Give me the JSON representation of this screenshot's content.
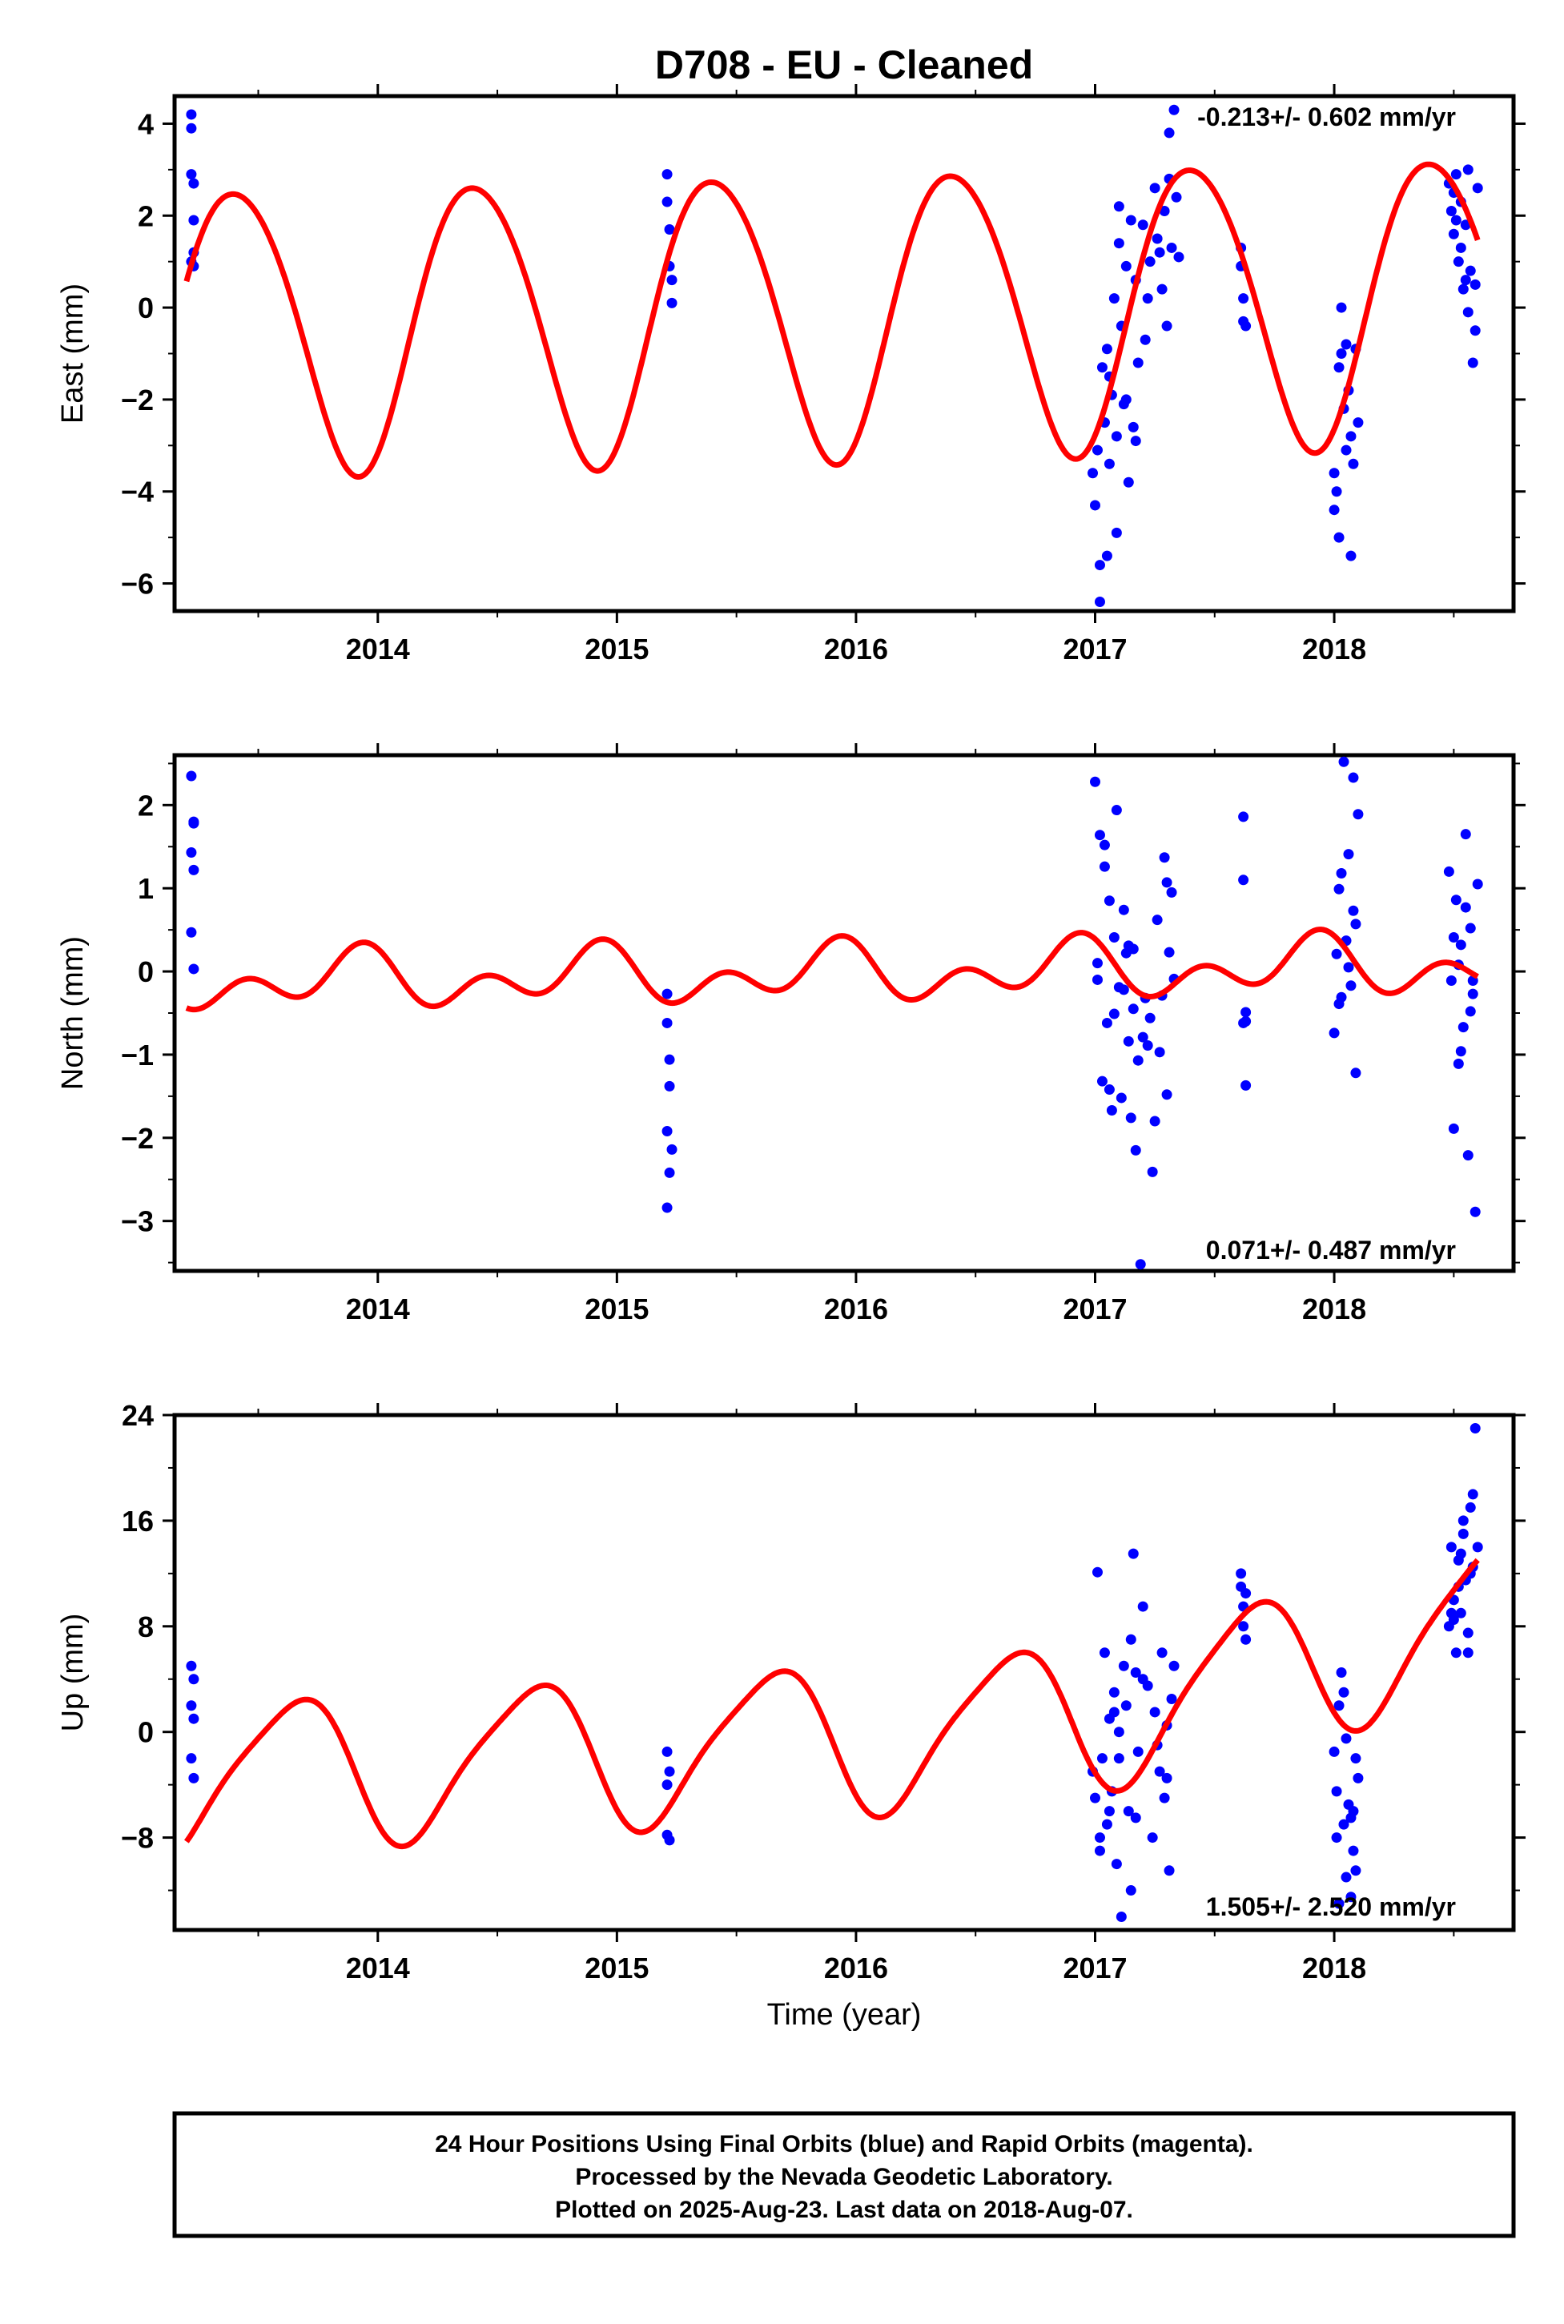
{
  "title": "D708  - EU - Cleaned",
  "colors": {
    "points": "#0000ff",
    "model": "#ff0000",
    "frame": "#000000"
  },
  "xlabel": "Time (year)",
  "footer": [
    "24 Hour Positions Using Final Orbits (blue) and Rapid Orbits (magenta).",
    "Processed by the Nevada Geodetic Laboratory.",
    "Plotted on 2025-Aug-23. Last data on 2018-Aug-07."
  ],
  "chart_data": [
    {
      "type": "scatter",
      "ylabel": "East (mm)",
      "rate_label": "-0.213+/- 0.602 mm/yr",
      "rate_position": "top-right",
      "xlim": [
        2013.15,
        2018.75
      ],
      "ylim": [
        -6.6,
        4.6
      ],
      "xticks": [
        2014,
        2015,
        2016,
        2017,
        2018
      ],
      "xtick_labels": [
        "2014",
        "2015",
        "2016",
        "2017",
        "2018"
      ],
      "yticks": [
        -6,
        -4,
        -2,
        0,
        2,
        4
      ],
      "ytick_labels": [
        "−6",
        "−4",
        "−2",
        "0",
        "2",
        "4"
      ],
      "ytick_minor": 1,
      "points": {
        "x": [
          2013.22,
          2013.22,
          2013.22,
          2013.23,
          2013.23,
          2013.23,
          2013.22,
          2013.23,
          2015.21,
          2015.21,
          2015.22,
          2015.22,
          2015.23,
          2015.23,
          2016.99,
          2017.0,
          2017.01,
          2017.02,
          2017.03,
          2017.04,
          2017.05,
          2017.06,
          2017.07,
          2017.08,
          2017.09,
          2017.1,
          2017.11,
          2017.12,
          2017.13,
          2017.14,
          2017.15,
          2017.16,
          2017.17,
          2017.18,
          2017.2,
          2017.22,
          2017.23,
          2017.25,
          2017.26,
          2017.28,
          2017.29,
          2017.3,
          2017.31,
          2017.32,
          2017.33,
          2017.34,
          2017.35,
          2017.02,
          2017.05,
          2017.09,
          2017.13,
          2017.17,
          2017.21,
          2017.27,
          2017.31,
          2017.06,
          2017.1,
          2017.61,
          2017.61,
          2017.62,
          2017.62,
          2017.63,
          2018.0,
          2018.01,
          2018.02,
          2018.03,
          2018.04,
          2018.05,
          2018.06,
          2018.07,
          2018.08,
          2018.09,
          2018.1,
          2018.02,
          2018.05,
          2018.07,
          2018.0,
          2018.03,
          2018.48,
          2018.49,
          2018.5,
          2018.51,
          2018.52,
          2018.53,
          2018.54,
          2018.55,
          2018.56,
          2018.57,
          2018.58,
          2018.59,
          2018.6,
          2018.5,
          2018.53,
          2018.56,
          2018.59,
          2018.51,
          2018.55
        ],
        "y": [
          4.2,
          3.9,
          2.9,
          2.7,
          1.9,
          1.2,
          1.0,
          0.9,
          2.9,
          2.3,
          1.7,
          0.9,
          0.6,
          0.1,
          -3.6,
          -4.3,
          -3.1,
          -5.6,
          -1.3,
          -2.5,
          -0.9,
          -3.4,
          -1.9,
          0.2,
          -2.8,
          1.4,
          -0.4,
          -2.1,
          0.9,
          -3.8,
          1.9,
          -2.6,
          0.6,
          -1.2,
          1.8,
          0.2,
          1.0,
          2.6,
          1.5,
          0.4,
          2.1,
          -0.4,
          3.8,
          1.3,
          4.3,
          2.4,
          1.1,
          -6.4,
          -5.4,
          -4.9,
          -2.0,
          -2.9,
          -0.7,
          1.2,
          2.8,
          -1.5,
          2.2,
          1.3,
          0.9,
          0.2,
          -0.3,
          -0.4,
          -3.6,
          -4.0,
          -5.0,
          -1.0,
          -2.2,
          -3.1,
          -1.8,
          -5.4,
          -3.4,
          -0.9,
          -2.5,
          -1.3,
          -0.8,
          -2.8,
          -4.4,
          0.0,
          2.7,
          2.1,
          1.6,
          2.9,
          1.0,
          2.3,
          0.4,
          1.8,
          -0.1,
          0.8,
          -1.2,
          0.5,
          2.6,
          2.5,
          1.3,
          3.0,
          -0.5,
          1.9,
          0.6
        ]
      },
      "model": {
        "mean": [
          2013.2,
          -0.45,
          2018.6,
          0.25
        ],
        "annual_amplitude": 3.1,
        "annual_peak": 0.41,
        "semiannual_amplitude": 0.25,
        "semiannual_peak": 0.2
      }
    },
    {
      "type": "scatter",
      "ylabel": "North (mm)",
      "rate_label": "0.071+/- 0.487 mm/yr",
      "rate_position": "bottom-right",
      "xlim": [
        2013.15,
        2018.75
      ],
      "ylim": [
        -3.6,
        2.6
      ],
      "xticks": [
        2014,
        2015,
        2016,
        2017,
        2018
      ],
      "xtick_labels": [
        "2014",
        "2015",
        "2016",
        "2017",
        "2018"
      ],
      "yticks": [
        -3,
        -2,
        -1,
        0,
        1,
        2
      ],
      "ytick_labels": [
        "−3",
        "−2",
        "−1",
        "0",
        "1",
        "2"
      ],
      "ytick_minor": 0.5,
      "points": {
        "x": [
          2013.22,
          2013.23,
          2013.22,
          2013.23,
          2013.22,
          2013.23,
          2013.23,
          2015.21,
          2015.21,
          2015.22,
          2015.22,
          2015.21,
          2015.23,
          2015.22,
          2015.21,
          2017.0,
          2017.01,
          2017.02,
          2017.03,
          2017.04,
          2017.05,
          2017.06,
          2017.07,
          2017.08,
          2017.09,
          2017.1,
          2017.11,
          2017.12,
          2017.13,
          2017.14,
          2017.15,
          2017.16,
          2017.17,
          2017.18,
          2017.19,
          2017.21,
          2017.23,
          2017.24,
          2017.26,
          2017.27,
          2017.29,
          2017.3,
          2017.31,
          2017.32,
          2017.33,
          2017.01,
          2017.04,
          2017.08,
          2017.12,
          2017.16,
          2017.2,
          2017.25,
          2017.28,
          2017.06,
          2017.14,
          2017.22,
          2017.3,
          2017.62,
          2017.62,
          2017.63,
          2017.63,
          2017.62,
          2017.63,
          2018.0,
          2018.01,
          2018.02,
          2018.03,
          2018.04,
          2018.05,
          2018.06,
          2018.07,
          2018.08,
          2018.09,
          2018.1,
          2018.03,
          2018.06,
          2018.09,
          2018.02,
          2018.08,
          2018.48,
          2018.49,
          2018.5,
          2018.51,
          2018.52,
          2018.53,
          2018.54,
          2018.55,
          2018.56,
          2018.57,
          2018.58,
          2018.59,
          2018.6,
          2018.5,
          2018.53,
          2018.55,
          2018.57,
          2018.52,
          2018.58
        ],
        "y": [
          2.35,
          1.78,
          1.43,
          1.22,
          0.47,
          0.03,
          1.8,
          -0.27,
          -0.62,
          -1.06,
          -1.38,
          -1.92,
          -2.14,
          -2.42,
          -2.84,
          2.28,
          0.1,
          1.64,
          -1.32,
          1.26,
          -0.62,
          0.85,
          -1.67,
          0.41,
          1.94,
          -0.19,
          -1.52,
          0.74,
          0.22,
          -0.84,
          -1.76,
          0.27,
          -2.15,
          -1.07,
          -3.52,
          -0.32,
          -0.56,
          -2.41,
          0.62,
          -0.97,
          1.37,
          -1.48,
          0.23,
          0.95,
          -0.09,
          -0.1,
          1.52,
          -0.51,
          -0.22,
          -0.45,
          -0.79,
          -1.8,
          -0.29,
          -1.42,
          0.31,
          -0.89,
          1.07,
          1.86,
          1.1,
          -0.49,
          -0.6,
          -0.62,
          -1.37,
          -0.74,
          0.21,
          0.99,
          -0.31,
          2.52,
          0.37,
          1.41,
          -0.17,
          0.73,
          -1.22,
          1.89,
          1.18,
          0.05,
          0.57,
          -0.39,
          2.33,
          1.2,
          -0.11,
          -1.89,
          0.86,
          -1.11,
          0.32,
          -0.67,
          1.65,
          -2.21,
          0.52,
          -0.27,
          -2.89,
          1.05,
          0.41,
          -0.96,
          0.77,
          -0.48,
          0.08,
          -0.11
        ]
      },
      "model": {
        "mean": [
          2013.2,
          -0.13,
          2018.6,
          0.08
        ],
        "annual_amplitude": 0.22,
        "annual_peak": 0.9,
        "semiannual_amplitude": 0.24,
        "semiannual_peak": 0.45
      }
    },
    {
      "type": "scatter",
      "ylabel": "Up (mm)",
      "rate_label": "1.505+/- 2.520 mm/yr",
      "rate_position": "bottom-right",
      "xlim": [
        2013.15,
        2018.75
      ],
      "ylim": [
        -15,
        24
      ],
      "xticks": [
        2014,
        2015,
        2016,
        2017,
        2018
      ],
      "xtick_labels": [
        "2014",
        "2015",
        "2016",
        "2017",
        "2018"
      ],
      "yticks": [
        -8,
        0,
        8,
        16,
        24
      ],
      "ytick_labels": [
        "−8",
        "0",
        "8",
        "16",
        "24"
      ],
      "ytick_minor": 4,
      "points": {
        "x": [
          2013.22,
          2013.23,
          2013.22,
          2013.23,
          2013.22,
          2013.23,
          2015.21,
          2015.22,
          2015.21,
          2015.22,
          2015.21,
          2016.99,
          2017.0,
          2017.01,
          2017.02,
          2017.03,
          2017.04,
          2017.05,
          2017.06,
          2017.07,
          2017.08,
          2017.09,
          2017.1,
          2017.11,
          2017.12,
          2017.13,
          2017.14,
          2017.15,
          2017.16,
          2017.17,
          2017.18,
          2017.2,
          2017.22,
          2017.24,
          2017.25,
          2017.27,
          2017.28,
          2017.29,
          2017.3,
          2017.31,
          2017.32,
          2017.33,
          2017.02,
          2017.06,
          2017.1,
          2017.15,
          2017.2,
          2017.26,
          2017.3,
          2017.08,
          2017.17,
          2017.61,
          2017.61,
          2017.62,
          2017.62,
          2017.63,
          2017.63,
          2018.0,
          2018.01,
          2018.02,
          2018.03,
          2018.04,
          2018.05,
          2018.06,
          2018.07,
          2018.08,
          2018.09,
          2018.1,
          2018.02,
          2018.05,
          2018.07,
          2018.09,
          2018.01,
          2018.04,
          2018.08,
          2018.48,
          2018.49,
          2018.5,
          2018.51,
          2018.52,
          2018.53,
          2018.54,
          2018.55,
          2018.56,
          2018.57,
          2018.58,
          2018.59,
          2018.6,
          2018.5,
          2018.52,
          2018.54,
          2018.56,
          2018.58,
          2018.49,
          2018.53,
          2018.57
        ],
        "y": [
          5.0,
          4.0,
          2.0,
          1.0,
          -2.0,
          -3.5,
          -1.5,
          -3.0,
          -7.8,
          -8.2,
          -4.0,
          -3.0,
          -5.0,
          12.1,
          -9.0,
          -2.0,
          6.0,
          -7.0,
          1.0,
          -4.5,
          3.0,
          -10.0,
          -2.0,
          -14.0,
          5.0,
          2.0,
          -6.0,
          7.0,
          13.5,
          4.5,
          -1.5,
          9.5,
          3.5,
          -8.0,
          1.5,
          -3.0,
          6.0,
          -5.0,
          0.5,
          -10.5,
          2.5,
          5.0,
          -8.0,
          -6.0,
          0.0,
          -12.0,
          4.0,
          -1.0,
          -3.5,
          1.5,
          -6.5,
          12.0,
          11.0,
          9.5,
          8.0,
          7.0,
          10.5,
          -1.5,
          -4.5,
          -13.0,
          4.5,
          -7.0,
          -11.0,
          -5.5,
          -12.5,
          -9.0,
          -2.0,
          -3.5,
          2.0,
          -0.5,
          -6.5,
          -10.5,
          -8.0,
          3.0,
          -6.0,
          8.0,
          14.0,
          10.0,
          6.0,
          13.0,
          9.0,
          15.0,
          11.5,
          6.0,
          17.0,
          12.5,
          23.0,
          14.0,
          8.5,
          11.0,
          16.0,
          7.5,
          18.0,
          9.0,
          13.5,
          12.0
        ]
      },
      "model": {
        "mean": [
          2013.2,
          -3.5,
          2016.0,
          -0.5,
          2016.95,
          1.0,
          2018.6,
          8.5
        ],
        "annual_amplitude": 5.5,
        "annual_peak": 0.64,
        "semiannual_amplitude": 1.0,
        "semiannual_peak": 0.3
      }
    }
  ]
}
